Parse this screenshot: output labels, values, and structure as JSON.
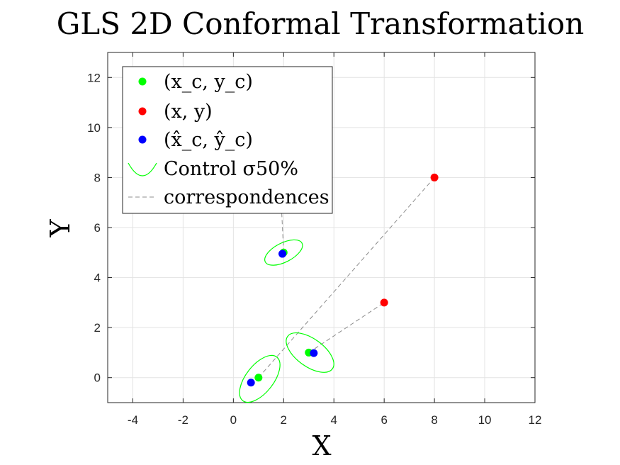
{
  "chart_data": {
    "type": "scatter",
    "title": "GLS 2D Conformal Transformation",
    "xlabel": "X",
    "ylabel": "Y",
    "xlim": [
      -5,
      12
    ],
    "ylim": [
      -1,
      13
    ],
    "xticks": [
      -4,
      -2,
      0,
      2,
      4,
      6,
      8,
      10,
      12
    ],
    "yticks": [
      0,
      2,
      4,
      6,
      8,
      10,
      12
    ],
    "xtick_labels": [
      "-4",
      "-2",
      "0",
      "2",
      "4",
      "6",
      "8",
      "10",
      "12"
    ],
    "ytick_labels": [
      "0",
      "2",
      "4",
      "6",
      "8",
      "10",
      "12"
    ],
    "grid": true,
    "legend_position": "top-left",
    "series": [
      {
        "name": "(x_c, y_c)",
        "legend_label": "(x_c, y_c)",
        "color": "#00ff00",
        "points": [
          [
            1,
            0
          ],
          [
            3,
            1
          ],
          [
            2,
            5
          ]
        ]
      },
      {
        "name": "(x, y)",
        "legend_label": "(x, y)",
        "color": "#ff0000",
        "points": [
          [
            8,
            8
          ],
          [
            6,
            3
          ]
        ]
      },
      {
        "name": "(x̂_c, ŷ_c)",
        "legend_label": "(x̂_c, ŷ_c)",
        "color": "#0000ff",
        "points": [
          [
            0.7,
            -0.2
          ],
          [
            3.2,
            0.98
          ],
          [
            1.95,
            4.95
          ]
        ]
      },
      {
        "name": "Control σ50%",
        "legend_label": "Control σ50%",
        "color": "#00ff00",
        "ellipses": [
          {
            "center": [
              1.05,
              -0.05
            ],
            "semi_major": 1.1,
            "semi_minor": 0.55,
            "angle_deg": 52
          },
          {
            "center": [
              3.05,
              1.0
            ],
            "semi_major": 1.1,
            "semi_minor": 0.55,
            "angle_deg": -36
          },
          {
            "center": [
              2.0,
              5.0
            ],
            "semi_major": 0.82,
            "semi_minor": 0.38,
            "angle_deg": 27
          }
        ]
      },
      {
        "name": "correspondences",
        "legend_label": "correspondences",
        "color": "#8c8c8c",
        "segments": [
          [
            [
              1,
              0
            ],
            [
              8,
              8
            ]
          ],
          [
            [
              3,
              1
            ],
            [
              6,
              3
            ]
          ],
          [
            [
              2,
              5
            ],
            [
              1.8,
              9.2
            ]
          ]
        ]
      }
    ]
  }
}
